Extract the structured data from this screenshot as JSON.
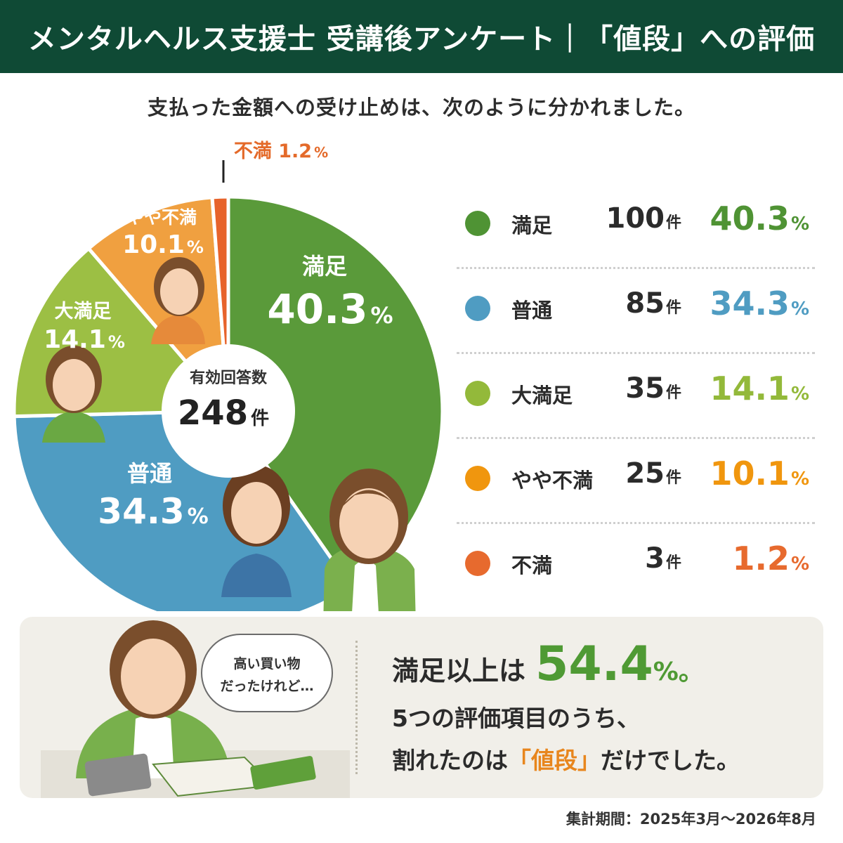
{
  "header": {
    "title": "メンタルヘルス支援士 受講後アンケート｜「値段」への評価"
  },
  "subtitle": "支払った金額への受け止めは、次のように分かれました。",
  "chart_data": {
    "type": "pie",
    "center_label": "有効回答数",
    "center_value": "248",
    "center_unit": "件",
    "slices": [
      {
        "name": "満足",
        "count": 100,
        "percent": 40.3,
        "color": "#5a9a3a"
      },
      {
        "name": "普通",
        "count": 85,
        "percent": 34.3,
        "color": "#4f9cc2"
      },
      {
        "name": "大満足",
        "count": 35,
        "percent": 14.1,
        "color": "#9cbf44"
      },
      {
        "name": "やや不満",
        "count": 25,
        "percent": 10.1,
        "color": "#f0a040"
      },
      {
        "name": "不満",
        "count": 3,
        "percent": 1.2,
        "color": "#e7632b"
      }
    ]
  },
  "legend": {
    "rows": [
      {
        "label": "満足",
        "count": "100",
        "unit": "件",
        "percent": "40.3",
        "pct_sign": "%",
        "color": "#4f9334"
      },
      {
        "label": "普通",
        "count": "85",
        "unit": "件",
        "percent": "34.3",
        "pct_sign": "%",
        "color": "#4f9cc2"
      },
      {
        "label": "大満足",
        "count": "35",
        "unit": "件",
        "percent": "14.1",
        "pct_sign": "%",
        "color": "#93b93a"
      },
      {
        "label": "やや不満",
        "count": "25",
        "unit": "件",
        "percent": "10.1",
        "pct_sign": "%",
        "color": "#f0960e"
      },
      {
        "label": "不満",
        "count": "3",
        "unit": "件",
        "percent": "1.2",
        "pct_sign": "%",
        "color": "#e76a2e"
      }
    ]
  },
  "pie_labels": {
    "manzoku_name": "満足",
    "manzoku_pct": "40.3",
    "futsu_name": "普通",
    "futsu_pct": "34.3",
    "daimanzoku_name": "大満足",
    "daimanzoku_pct": "14.1",
    "yayafuman_name": "やや不満",
    "yayafuman_pct": "10.1",
    "fuman_label": "不満 1.2",
    "pct_sign": "%"
  },
  "bottom": {
    "speech_line1": "高い買い物",
    "speech_line2": "だったけれど…",
    "msg_prefix": "満足以上は",
    "msg_value": "54.4",
    "msg_suffix": "%。",
    "line2": "5つの評価項目のうち、",
    "line3_a": "割れたのは",
    "line3_hl": "「値段」",
    "line3_b": "だけでした。"
  },
  "footer": "集計期間：2025年3月～2026年8月"
}
